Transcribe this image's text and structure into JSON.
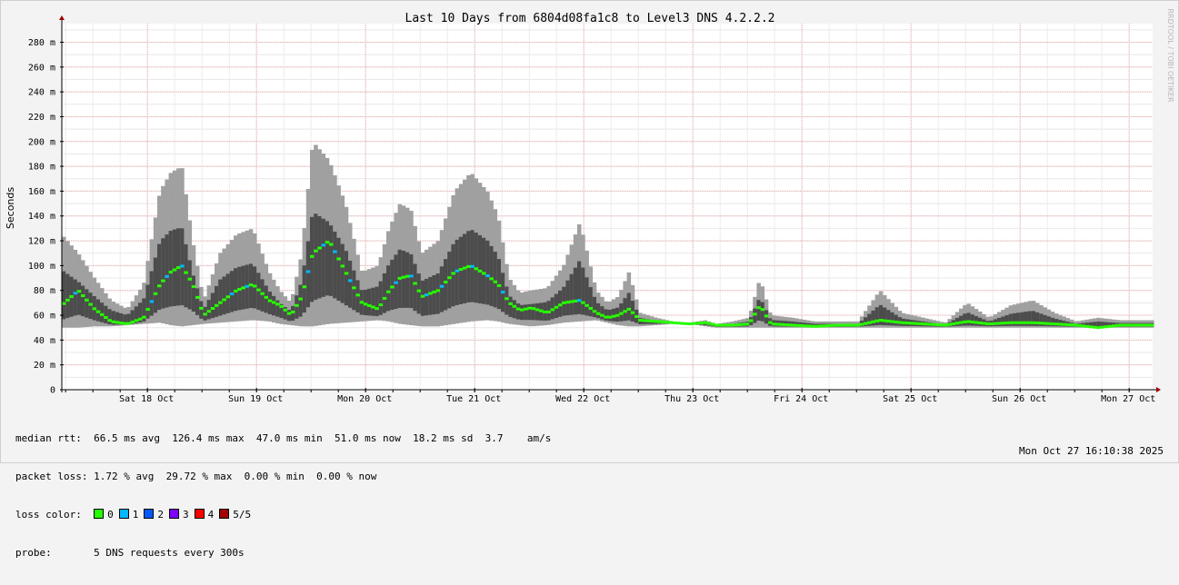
{
  "chart_data": {
    "type": "area",
    "title": "Last 10 Days from 6804d08fa1c8 to Level3 DNS 4.2.2.2",
    "ylabel": "Seconds",
    "watermark": "RRDTOOL / TOBI OETIKER",
    "yticks": [
      {
        "value": 0,
        "label": "0"
      },
      {
        "value": 20,
        "label": "20 m"
      },
      {
        "value": 40,
        "label": "40 m"
      },
      {
        "value": 60,
        "label": "60 m"
      },
      {
        "value": 80,
        "label": "80 m"
      },
      {
        "value": 100,
        "label": "100 m"
      },
      {
        "value": 120,
        "label": "120 m"
      },
      {
        "value": 140,
        "label": "140 m"
      },
      {
        "value": 160,
        "label": "160 m"
      },
      {
        "value": 180,
        "label": "180 m"
      },
      {
        "value": 200,
        "label": "200 m"
      },
      {
        "value": 220,
        "label": "220 m"
      },
      {
        "value": 240,
        "label": "240 m"
      },
      {
        "value": 260,
        "label": "260 m"
      },
      {
        "value": 280,
        "label": "280 m"
      }
    ],
    "ylim": [
      0,
      295
    ],
    "xticks": [
      "Sat 18 Oct",
      "Sun 19 Oct",
      "Mon 20 Oct",
      "Tue 21 Oct",
      "Wed 22 Oct",
      "Thu 23 Oct",
      "Fri 24 Oct",
      "Sat 25 Oct",
      "Sun 26 Oct",
      "Mon 27 Oct"
    ],
    "x_unit": "days since start of plotted window",
    "xlim": [
      0,
      10
    ],
    "xtick_positions": [
      0.785,
      1.785,
      2.785,
      3.785,
      4.785,
      5.785,
      6.785,
      7.785,
      8.785,
      9.785
    ],
    "grid": true,
    "legend": "bottom-left",
    "colors": {
      "outer_band": "#a0a0a0",
      "inner_band": "#4c4c4c",
      "loss_0": "#26ff00",
      "loss_1": "#00b8ff",
      "loss_2": "#0059ff",
      "loss_3": "#7e00ff",
      "loss_4": "#ff0000",
      "loss_5": "#a10000"
    },
    "series": [
      {
        "name": "rtt range (min/max)",
        "x": [
          0.0,
          0.15,
          0.3,
          0.45,
          0.6,
          0.75,
          0.9,
          1.0,
          1.1,
          1.2,
          1.3,
          1.45,
          1.6,
          1.75,
          1.9,
          2.0,
          2.1,
          2.2,
          2.3,
          2.45,
          2.6,
          2.75,
          2.9,
          3.0,
          3.1,
          3.2,
          3.3,
          3.45,
          3.6,
          3.75,
          3.9,
          4.0,
          4.1,
          4.2,
          4.3,
          4.45,
          4.6,
          4.75,
          4.9,
          5.0,
          5.1,
          5.2,
          5.3,
          5.45,
          5.6,
          5.75,
          5.9,
          6.0,
          6.15,
          6.3,
          6.4,
          6.5,
          6.7,
          6.9,
          7.1,
          7.3,
          7.5,
          7.7,
          7.9,
          8.1,
          8.3,
          8.5,
          8.7,
          8.9,
          9.1,
          9.3,
          9.5,
          9.7,
          9.9,
          10.0
        ],
        "low": [
          50,
          50,
          51,
          51,
          52,
          53,
          54,
          52,
          51,
          52,
          53,
          54,
          55,
          56,
          55,
          53,
          52,
          51,
          51,
          53,
          54,
          55,
          56,
          55,
          53,
          52,
          51,
          51,
          53,
          55,
          56,
          55,
          53,
          52,
          51,
          52,
          54,
          55,
          56,
          54,
          52,
          51,
          51,
          52,
          53,
          53,
          51,
          50,
          50,
          50,
          50,
          50,
          50,
          50,
          50,
          50,
          50,
          50,
          50,
          50,
          50,
          50,
          50,
          50,
          50,
          50,
          50,
          50,
          50,
          50
        ],
        "high": [
          125,
          110,
          90,
          72,
          65,
          85,
          160,
          175,
          180,
          120,
          72,
          110,
          125,
          130,
          95,
          80,
          70,
          110,
          200,
          185,
          150,
          95,
          100,
          130,
          150,
          145,
          110,
          120,
          160,
          175,
          160,
          140,
          90,
          78,
          80,
          82,
          100,
          135,
          80,
          70,
          75,
          95,
          62,
          58,
          55,
          54,
          56,
          53,
          55,
          58,
          90,
          60,
          58,
          55,
          55,
          55,
          80,
          62,
          58,
          54,
          70,
          58,
          68,
          72,
          62,
          55,
          58,
          56,
          56,
          56
        ]
      },
      {
        "name": "median rtt",
        "x": [
          0.0,
          0.15,
          0.3,
          0.45,
          0.6,
          0.75,
          0.9,
          1.0,
          1.1,
          1.2,
          1.3,
          1.45,
          1.6,
          1.75,
          1.9,
          2.0,
          2.1,
          2.2,
          2.3,
          2.45,
          2.6,
          2.75,
          2.9,
          3.0,
          3.1,
          3.2,
          3.3,
          3.45,
          3.6,
          3.75,
          3.9,
          4.0,
          4.1,
          4.2,
          4.3,
          4.45,
          4.6,
          4.75,
          4.9,
          5.0,
          5.1,
          5.2,
          5.3,
          5.45,
          5.6,
          5.75,
          5.9,
          6.0,
          6.15,
          6.3,
          6.4,
          6.5,
          6.7,
          6.9,
          7.1,
          7.3,
          7.5,
          7.7,
          7.9,
          8.1,
          8.3,
          8.5,
          8.7,
          8.9,
          9.1,
          9.3,
          9.5,
          9.7,
          9.9,
          10.0
        ],
        "values": [
          68,
          80,
          65,
          55,
          53,
          58,
          85,
          95,
          100,
          85,
          60,
          70,
          80,
          85,
          72,
          68,
          60,
          75,
          110,
          120,
          95,
          70,
          65,
          80,
          90,
          92,
          75,
          80,
          95,
          100,
          92,
          85,
          70,
          64,
          66,
          62,
          70,
          72,
          62,
          58,
          60,
          65,
          56,
          55,
          54,
          53,
          54,
          52,
          52,
          53,
          68,
          53,
          52,
          51,
          52,
          52,
          56,
          54,
          53,
          52,
          55,
          53,
          54,
          54,
          53,
          52,
          50,
          52,
          52,
          52
        ]
      }
    ]
  },
  "stats": {
    "median_label": "median rtt:",
    "median_values": "66.5 ms avg  126.4 ms max  47.0 ms min  51.0 ms now  18.2 ms sd  3.7    am/s",
    "loss_label": "packet loss:",
    "loss_values": "1.72 % avg  29.72 % max  0.00 % min  0.00 % now",
    "color_label": "loss color:",
    "colors": [
      {
        "label": "0",
        "color": "#26ff00"
      },
      {
        "label": "1",
        "color": "#00b8ff"
      },
      {
        "label": "2",
        "color": "#0059ff"
      },
      {
        "label": "3",
        "color": "#7e00ff"
      },
      {
        "label": "4",
        "color": "#ff0000"
      },
      {
        "label": "5/5",
        "color": "#a10000"
      }
    ],
    "probe_label": "probe:",
    "probe_value": "5 DNS requests every 300s"
  },
  "timestamp": "Mon Oct 27 16:10:38 2025"
}
